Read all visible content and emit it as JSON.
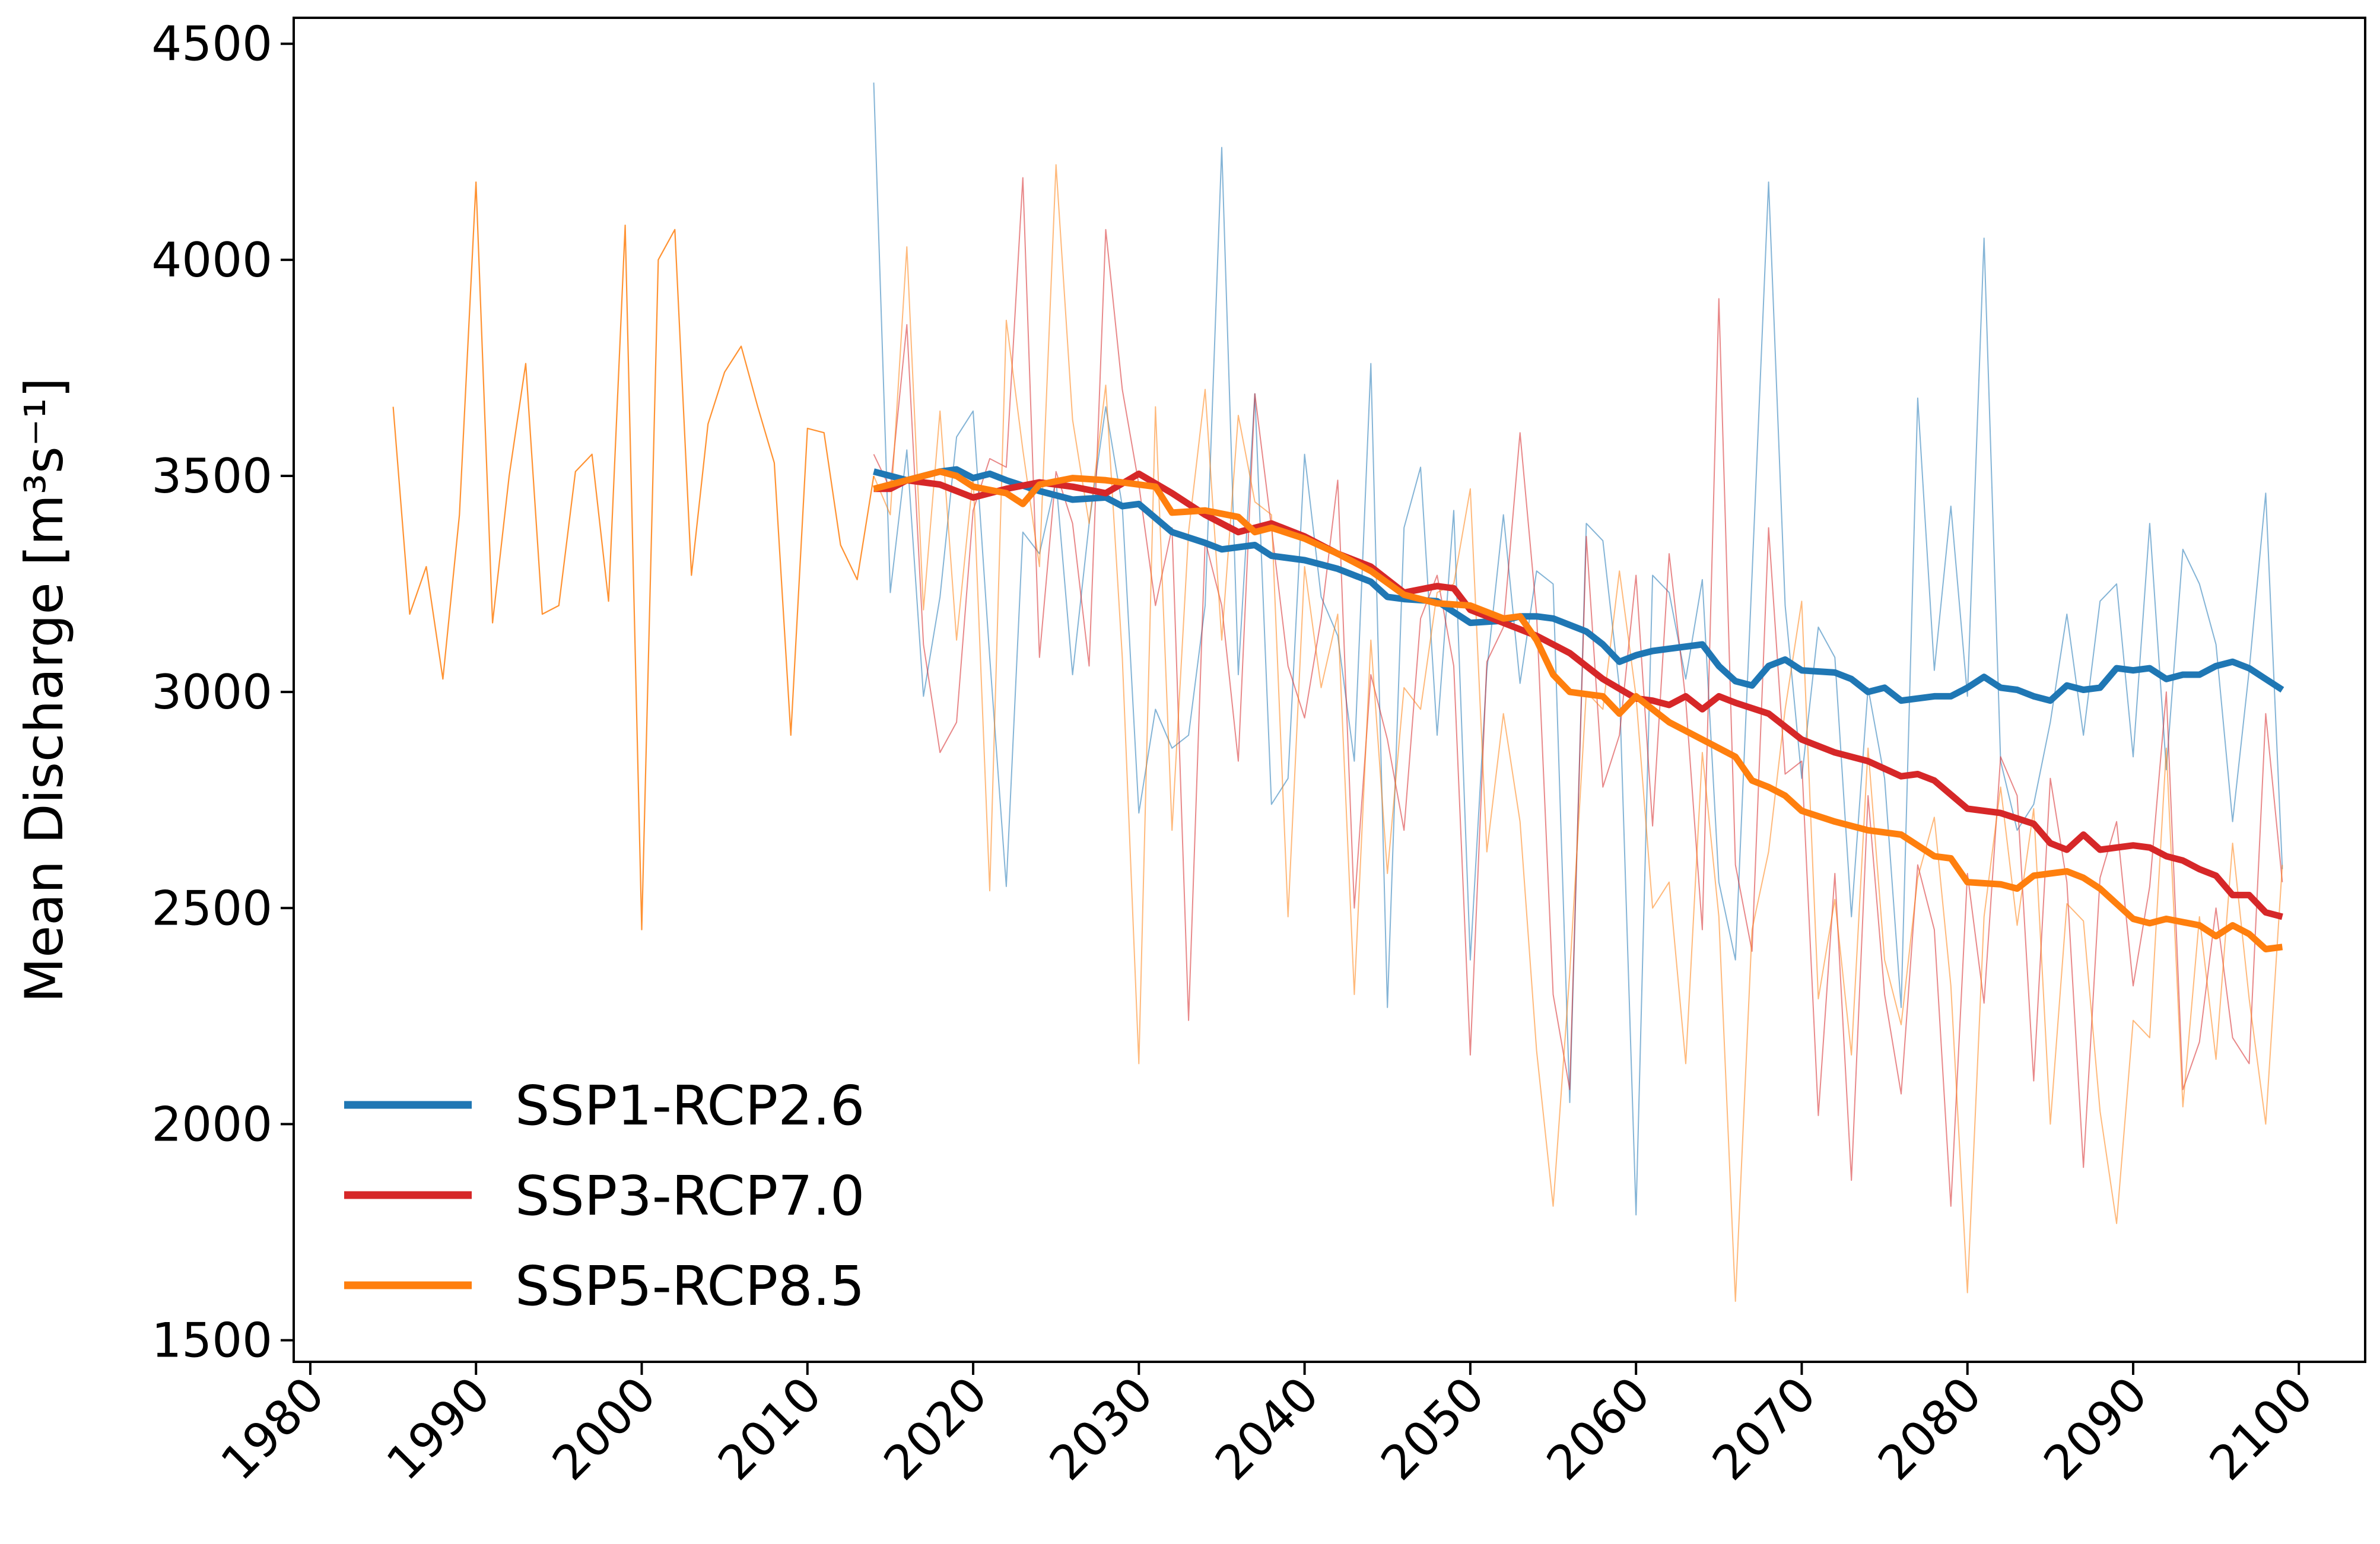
{
  "chart_data": {
    "type": "line",
    "title": "",
    "xlabel": "",
    "ylabel": "Mean Discharge [m³s⁻¹]",
    "xlim": [
      1979,
      2104
    ],
    "ylim": [
      1450,
      4560
    ],
    "x_ticks": [
      1980,
      1990,
      2000,
      2010,
      2020,
      2030,
      2040,
      2050,
      2060,
      2070,
      2080,
      2090,
      2100
    ],
    "y_ticks": [
      1500,
      2000,
      2500,
      3000,
      3500,
      4000,
      4500
    ],
    "grid": false,
    "legend_position": "lower-left",
    "historical": {
      "color": "#ff7f0e",
      "x": [
        1985,
        1986,
        1987,
        1988,
        1989,
        1990,
        1991,
        1992,
        1993,
        1994,
        1995,
        1996,
        1997,
        1998,
        1999,
        2000,
        2001,
        2002,
        2003,
        2004,
        2005,
        2006,
        2007,
        2008,
        2009,
        2010,
        2011,
        2012,
        2013,
        2014
      ],
      "y": [
        3660,
        3180,
        3290,
        3030,
        3410,
        4180,
        3160,
        3500,
        3760,
        3180,
        3200,
        3510,
        3550,
        3210,
        4080,
        2450,
        4000,
        4070,
        3270,
        3620,
        3740,
        3800,
        3660,
        3530,
        2900,
        3610,
        3600,
        3340,
        3260,
        3500
      ]
    },
    "series": [
      {
        "name": "SSP1-RCP2.6",
        "color": "#1f77b4",
        "smooth_x": [
          2014,
          2016,
          2018,
          2019,
          2020,
          2021,
          2022,
          2024,
          2026,
          2028,
          2029,
          2030,
          2032,
          2034,
          2035,
          2037,
          2038,
          2040,
          2042,
          2044,
          2045,
          2046,
          2048,
          2050,
          2052,
          2053,
          2054,
          2055,
          2057,
          2058,
          2059,
          2060,
          2061,
          2062,
          2064,
          2065,
          2066,
          2067,
          2068,
          2069,
          2070,
          2072,
          2073,
          2074,
          2075,
          2076,
          2077,
          2078,
          2079,
          2080,
          2081,
          2082,
          2083,
          2084,
          2085,
          2086,
          2087,
          2088,
          2089,
          2090,
          2091,
          2092,
          2093,
          2094,
          2095,
          2096,
          2097,
          2098,
          2099
        ],
        "smooth_y": [
          3510,
          3490,
          3510,
          3515,
          3495,
          3505,
          3490,
          3465,
          3445,
          3450,
          3430,
          3435,
          3370,
          3345,
          3330,
          3340,
          3315,
          3305,
          3285,
          3255,
          3220,
          3215,
          3210,
          3160,
          3165,
          3175,
          3175,
          3170,
          3140,
          3110,
          3070,
          3085,
          3095,
          3100,
          3110,
          3060,
          3025,
          3015,
          3060,
          3075,
          3050,
          3045,
          3030,
          3000,
          3010,
          2980,
          2985,
          2990,
          2990,
          3010,
          3035,
          3010,
          3005,
          2990,
          2980,
          3015,
          3005,
          3010,
          3055,
          3050,
          3055,
          3030,
          3040,
          3040,
          3060,
          3070,
          3055,
          3030,
          3005
        ],
        "annual_x": [
          2014,
          2015,
          2016,
          2017,
          2018,
          2019,
          2020,
          2021,
          2022,
          2023,
          2024,
          2025,
          2026,
          2027,
          2028,
          2029,
          2030,
          2031,
          2032,
          2033,
          2034,
          2035,
          2036,
          2037,
          2038,
          2039,
          2040,
          2041,
          2042,
          2043,
          2044,
          2045,
          2046,
          2047,
          2048,
          2049,
          2050,
          2051,
          2052,
          2053,
          2054,
          2055,
          2056,
          2057,
          2058,
          2059,
          2060,
          2061,
          2062,
          2063,
          2064,
          2065,
          2066,
          2067,
          2068,
          2069,
          2070,
          2071,
          2072,
          2073,
          2074,
          2075,
          2076,
          2077,
          2078,
          2079,
          2080,
          2081,
          2082,
          2083,
          2084,
          2085,
          2086,
          2087,
          2088,
          2089,
          2090,
          2091,
          2092,
          2093,
          2094,
          2095,
          2096,
          2097,
          2098,
          2099
        ],
        "annual_y": [
          4410,
          3230,
          3560,
          2990,
          3220,
          3590,
          3650,
          3080,
          2550,
          3370,
          3320,
          3490,
          3040,
          3390,
          3660,
          3430,
          2720,
          2960,
          2870,
          2900,
          3200,
          4260,
          3040,
          3690,
          2740,
          2800,
          3550,
          3220,
          3130,
          2840,
          3760,
          2270,
          3380,
          3520,
          2900,
          3420,
          2380,
          3050,
          3410,
          3020,
          3280,
          3250,
          2050,
          3390,
          3350,
          3010,
          1790,
          3270,
          3230,
          3030,
          3260,
          2560,
          2380,
          3270,
          4180,
          3200,
          2800,
          3150,
          3080,
          2480,
          3010,
          2800,
          2270,
          3680,
          3050,
          3430,
          2990,
          4050,
          2840,
          2680,
          2740,
          2930,
          3180,
          2900,
          3210,
          3250,
          2850,
          3390,
          2820,
          3330,
          3250,
          3110,
          2700,
          3050,
          3460,
          2590
        ]
      },
      {
        "name": "SSP3-RCP7.0",
        "color": "#d62728",
        "smooth_x": [
          2014,
          2015,
          2016,
          2018,
          2020,
          2022,
          2024,
          2026,
          2028,
          2030,
          2032,
          2034,
          2036,
          2038,
          2040,
          2042,
          2044,
          2046,
          2048,
          2049,
          2050,
          2052,
          2054,
          2056,
          2058,
          2060,
          2061,
          2062,
          2063,
          2064,
          2065,
          2066,
          2068,
          2069,
          2070,
          2072,
          2074,
          2076,
          2077,
          2078,
          2080,
          2082,
          2084,
          2085,
          2086,
          2087,
          2088,
          2089,
          2090,
          2091,
          2092,
          2093,
          2094,
          2095,
          2096,
          2097,
          2098,
          2099
        ],
        "smooth_y": [
          3470,
          3470,
          3490,
          3480,
          3450,
          3470,
          3485,
          3475,
          3460,
          3505,
          3460,
          3410,
          3370,
          3390,
          3360,
          3320,
          3290,
          3230,
          3245,
          3240,
          3190,
          3160,
          3130,
          3090,
          3030,
          2985,
          2980,
          2970,
          2990,
          2960,
          2990,
          2975,
          2950,
          2920,
          2890,
          2860,
          2840,
          2805,
          2810,
          2795,
          2730,
          2720,
          2695,
          2650,
          2635,
          2670,
          2635,
          2640,
          2645,
          2640,
          2620,
          2610,
          2590,
          2575,
          2530,
          2530,
          2490,
          2480
        ],
        "annual_x": [
          2014,
          2015,
          2016,
          2017,
          2018,
          2019,
          2020,
          2021,
          2022,
          2023,
          2024,
          2025,
          2026,
          2027,
          2028,
          2029,
          2030,
          2031,
          2032,
          2033,
          2034,
          2035,
          2036,
          2037,
          2038,
          2039,
          2040,
          2041,
          2042,
          2043,
          2044,
          2045,
          2046,
          2047,
          2048,
          2049,
          2050,
          2051,
          2052,
          2053,
          2054,
          2055,
          2056,
          2057,
          2058,
          2059,
          2060,
          2061,
          2062,
          2063,
          2064,
          2065,
          2066,
          2067,
          2068,
          2069,
          2070,
          2071,
          2072,
          2073,
          2074,
          2075,
          2076,
          2077,
          2078,
          2079,
          2080,
          2081,
          2082,
          2083,
          2084,
          2085,
          2086,
          2087,
          2088,
          2089,
          2090,
          2091,
          2092,
          2093,
          2094,
          2095,
          2096,
          2097,
          2098,
          2099
        ],
        "annual_y": [
          3550,
          3470,
          3850,
          3110,
          2860,
          2930,
          3420,
          3540,
          3520,
          4190,
          3080,
          3510,
          3390,
          3060,
          4070,
          3700,
          3480,
          3200,
          3380,
          2240,
          3350,
          3200,
          2840,
          3690,
          3380,
          3060,
          2940,
          3170,
          3490,
          2500,
          3040,
          2890,
          2680,
          3170,
          3270,
          3060,
          2160,
          3070,
          3150,
          3600,
          3180,
          2300,
          2080,
          3360,
          2780,
          2900,
          3270,
          2690,
          3320,
          2980,
          2450,
          3910,
          2600,
          2400,
          3380,
          2810,
          2840,
          2020,
          2580,
          1870,
          2760,
          2300,
          2070,
          2600,
          2450,
          1810,
          2580,
          2280,
          2850,
          2760,
          2100,
          2800,
          2560,
          1900,
          2570,
          2700,
          2320,
          2550,
          3000,
          2080,
          2190,
          2500,
          2200,
          2140,
          2950,
          2560
        ]
      },
      {
        "name": "SSP5-RCP8.5",
        "color": "#ff7f0e",
        "smooth_x": [
          2014,
          2016,
          2018,
          2019,
          2020,
          2022,
          2023,
          2024,
          2026,
          2028,
          2030,
          2031,
          2032,
          2034,
          2036,
          2037,
          2038,
          2040,
          2042,
          2044,
          2046,
          2048,
          2050,
          2052,
          2053,
          2054,
          2055,
          2056,
          2058,
          2059,
          2060,
          2062,
          2064,
          2066,
          2067,
          2068,
          2069,
          2070,
          2072,
          2074,
          2076,
          2078,
          2079,
          2080,
          2082,
          2083,
          2084,
          2085,
          2086,
          2087,
          2088,
          2089,
          2090,
          2091,
          2092,
          2094,
          2095,
          2096,
          2097,
          2098,
          2099
        ],
        "smooth_y": [
          3470,
          3490,
          3510,
          3500,
          3475,
          3460,
          3435,
          3480,
          3495,
          3490,
          3480,
          3475,
          3415,
          3420,
          3405,
          3370,
          3380,
          3355,
          3320,
          3280,
          3225,
          3205,
          3200,
          3170,
          3175,
          3120,
          3040,
          3000,
          2990,
          2950,
          2990,
          2930,
          2890,
          2850,
          2795,
          2780,
          2760,
          2725,
          2700,
          2680,
          2670,
          2620,
          2615,
          2560,
          2555,
          2545,
          2575,
          2580,
          2585,
          2570,
          2545,
          2510,
          2475,
          2465,
          2475,
          2460,
          2435,
          2460,
          2440,
          2405,
          2410
        ],
        "annual_x": [
          2014,
          2015,
          2016,
          2017,
          2018,
          2019,
          2020,
          2021,
          2022,
          2023,
          2024,
          2025,
          2026,
          2027,
          2028,
          2029,
          2030,
          2031,
          2032,
          2033,
          2034,
          2035,
          2036,
          2037,
          2038,
          2039,
          2040,
          2041,
          2042,
          2043,
          2044,
          2045,
          2046,
          2047,
          2048,
          2049,
          2050,
          2051,
          2052,
          2053,
          2054,
          2055,
          2056,
          2057,
          2058,
          2059,
          2060,
          2061,
          2062,
          2063,
          2064,
          2065,
          2066,
          2067,
          2068,
          2069,
          2070,
          2071,
          2072,
          2073,
          2074,
          2075,
          2076,
          2077,
          2078,
          2079,
          2080,
          2081,
          2082,
          2083,
          2084,
          2085,
          2086,
          2087,
          2088,
          2089,
          2090,
          2091,
          2092,
          2093,
          2094,
          2095,
          2096,
          2097,
          2098,
          2099
        ],
        "annual_y": [
          3500,
          3410,
          4030,
          3190,
          3650,
          3120,
          3500,
          2540,
          3860,
          3560,
          3290,
          4220,
          3630,
          3390,
          3710,
          3080,
          2140,
          3660,
          2680,
          3370,
          3700,
          3120,
          3640,
          3440,
          3410,
          2480,
          3290,
          3010,
          3180,
          2300,
          3120,
          2580,
          3010,
          2960,
          3230,
          3250,
          3470,
          2630,
          2950,
          2700,
          2170,
          1810,
          2350,
          3000,
          2960,
          3280,
          2990,
          2500,
          2560,
          2140,
          2860,
          2480,
          1590,
          2450,
          2630,
          2960,
          3210,
          2290,
          2520,
          2160,
          2870,
          2380,
          2230,
          2570,
          2710,
          2320,
          1610,
          2480,
          2780,
          2460,
          2730,
          2000,
          2510,
          2470,
          2030,
          1770,
          2240,
          2200,
          2870,
          2040,
          2480,
          2150,
          2650,
          2290,
          2000,
          2600
        ]
      }
    ]
  }
}
